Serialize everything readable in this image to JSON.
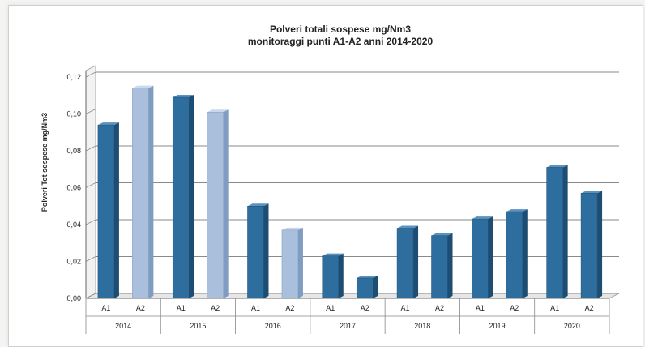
{
  "chart_data": {
    "type": "bar",
    "title_lines": [
      "Polveri totali sospese mg/Nm3",
      "monitoraggi punti A1-A2 anni 2014-2020"
    ],
    "ylabel": "Polveri Tot sospese mg/Nm3",
    "xlabel": "",
    "ylim": [
      0,
      0.12
    ],
    "yticks": [
      "0,00",
      "0,02",
      "0,04",
      "0,06",
      "0,08",
      "0,10",
      "0,12"
    ],
    "grid": true,
    "legend": "none",
    "years": [
      "2014",
      "2015",
      "2016",
      "2017",
      "2018",
      "2019",
      "2020"
    ],
    "points": [
      "A1",
      "A2"
    ],
    "values": [
      [
        0.094,
        0.114
      ],
      [
        0.109,
        0.101
      ],
      [
        0.05,
        0.037
      ],
      [
        0.023,
        0.011
      ],
      [
        0.038,
        0.034
      ],
      [
        0.043,
        0.047
      ],
      [
        0.071,
        0.057
      ]
    ],
    "colors": {
      "dark": "#2e6e9e",
      "dark_side": "#1d4d72",
      "dark_top": "#5a93bf",
      "light": "#a9bfdc",
      "light_side": "#7f9cc2",
      "light_top": "#cbd9ec",
      "grid": "#8a8a8a",
      "wall": "#ffffff",
      "text": "#222222"
    },
    "light_bars": [
      [
        0,
        1
      ],
      [
        1,
        1
      ],
      [
        2,
        1
      ]
    ]
  }
}
